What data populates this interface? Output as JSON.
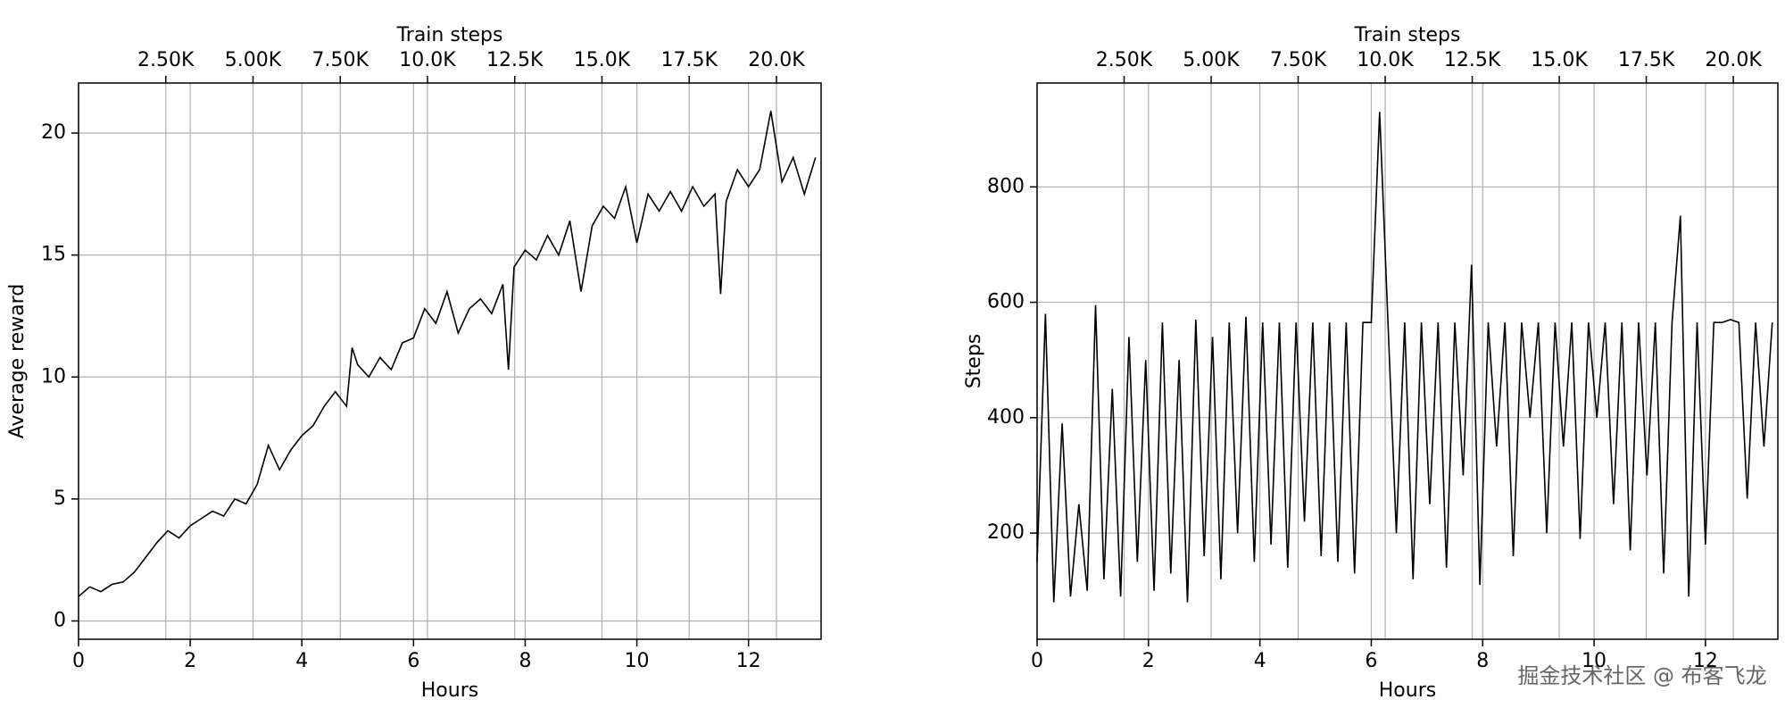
{
  "chart_data": [
    {
      "type": "line",
      "xlabel": "Hours",
      "ylabel": "Average reward",
      "x2label": "Train steps",
      "color": "#000000",
      "grid": true,
      "xlim": [
        0,
        13.3
      ],
      "xticks": [
        0,
        2,
        4,
        6,
        8,
        10,
        12
      ],
      "x2lim": [
        0,
        21280
      ],
      "x2ticks": [
        {
          "value": 2500,
          "label": "2.50K"
        },
        {
          "value": 5000,
          "label": "5.00K"
        },
        {
          "value": 7500,
          "label": "7.50K"
        },
        {
          "value": 10000,
          "label": "10.0K"
        },
        {
          "value": 12500,
          "label": "12.5K"
        },
        {
          "value": 15000,
          "label": "15.0K"
        },
        {
          "value": 17500,
          "label": "17.5K"
        },
        {
          "value": 20000,
          "label": "20.0K"
        }
      ],
      "ylim": [
        -0.75,
        22.05
      ],
      "yticks": [
        0,
        5,
        10,
        15,
        20
      ],
      "x": [
        0,
        0.2,
        0.4,
        0.6,
        0.8,
        1.0,
        1.2,
        1.4,
        1.6,
        1.8,
        2.0,
        2.2,
        2.4,
        2.6,
        2.8,
        3.0,
        3.2,
        3.4,
        3.6,
        3.8,
        4.0,
        4.2,
        4.4,
        4.6,
        4.8,
        4.9,
        5.0,
        5.2,
        5.4,
        5.6,
        5.8,
        6.0,
        6.2,
        6.4,
        6.6,
        6.8,
        7.0,
        7.2,
        7.4,
        7.6,
        7.7,
        7.8,
        8.0,
        8.2,
        8.4,
        8.6,
        8.8,
        9.0,
        9.2,
        9.4,
        9.6,
        9.8,
        10.0,
        10.2,
        10.4,
        10.6,
        10.8,
        11.0,
        11.2,
        11.4,
        11.5,
        11.6,
        11.8,
        12.0,
        12.2,
        12.4,
        12.6,
        12.8,
        13.0,
        13.2
      ],
      "values": [
        1.0,
        1.4,
        1.2,
        1.5,
        1.6,
        2.0,
        2.6,
        3.2,
        3.7,
        3.4,
        3.9,
        4.2,
        4.5,
        4.3,
        5.0,
        4.8,
        5.6,
        7.2,
        6.2,
        7.0,
        7.6,
        8.0,
        8.8,
        9.4,
        8.8,
        11.2,
        10.5,
        10.0,
        10.8,
        10.3,
        11.4,
        11.6,
        12.8,
        12.2,
        13.5,
        11.8,
        12.8,
        13.2,
        12.6,
        13.8,
        10.3,
        14.5,
        15.2,
        14.8,
        15.8,
        15.0,
        16.4,
        13.5,
        16.2,
        17.0,
        16.5,
        17.8,
        15.5,
        17.5,
        16.8,
        17.6,
        16.8,
        17.8,
        17.0,
        17.5,
        13.4,
        17.2,
        18.5,
        17.8,
        18.5,
        20.9,
        18.0,
        19.0,
        17.5,
        19.0
      ]
    },
    {
      "type": "line",
      "xlabel": "Hours",
      "ylabel": "Steps",
      "x2label": "Train steps",
      "color": "#000000",
      "grid": true,
      "xlim": [
        0,
        13.3
      ],
      "xticks": [
        0,
        2,
        4,
        6,
        8,
        10,
        12
      ],
      "x2lim": [
        0,
        21280
      ],
      "x2ticks": [
        {
          "value": 2500,
          "label": "2.50K"
        },
        {
          "value": 5000,
          "label": "5.00K"
        },
        {
          "value": 7500,
          "label": "7.50K"
        },
        {
          "value": 10000,
          "label": "10.0K"
        },
        {
          "value": 12500,
          "label": "12.5K"
        },
        {
          "value": 15000,
          "label": "15.0K"
        },
        {
          "value": 17500,
          "label": "17.5K"
        },
        {
          "value": 20000,
          "label": "20.0K"
        }
      ],
      "ylim": [
        16,
        980
      ],
      "yticks": [
        200,
        400,
        600,
        800
      ],
      "x": [
        0,
        0.15,
        0.3,
        0.45,
        0.6,
        0.75,
        0.9,
        1.05,
        1.2,
        1.35,
        1.5,
        1.65,
        1.8,
        1.95,
        2.1,
        2.25,
        2.4,
        2.55,
        2.7,
        2.85,
        3.0,
        3.15,
        3.3,
        3.45,
        3.6,
        3.75,
        3.9,
        4.05,
        4.2,
        4.35,
        4.5,
        4.65,
        4.8,
        4.95,
        5.1,
        5.25,
        5.4,
        5.55,
        5.7,
        5.85,
        6.0,
        6.15,
        6.3,
        6.45,
        6.6,
        6.75,
        6.9,
        7.05,
        7.2,
        7.35,
        7.5,
        7.65,
        7.8,
        7.95,
        8.1,
        8.25,
        8.4,
        8.55,
        8.7,
        8.85,
        9.0,
        9.15,
        9.3,
        9.45,
        9.6,
        9.75,
        9.9,
        10.05,
        10.2,
        10.35,
        10.5,
        10.65,
        10.8,
        10.95,
        11.1,
        11.25,
        11.4,
        11.55,
        11.7,
        11.85,
        12.0,
        12.15,
        12.3,
        12.45,
        12.6,
        12.75,
        12.9,
        13.05,
        13.2
      ],
      "values": [
        150,
        580,
        80,
        390,
        90,
        250,
        100,
        595,
        120,
        450,
        90,
        540,
        150,
        500,
        100,
        565,
        130,
        500,
        80,
        570,
        160,
        540,
        120,
        565,
        200,
        575,
        150,
        565,
        180,
        565,
        140,
        565,
        220,
        565,
        160,
        565,
        150,
        565,
        130,
        565,
        565,
        930,
        565,
        200,
        565,
        120,
        565,
        250,
        565,
        140,
        565,
        300,
        665,
        110,
        565,
        350,
        565,
        160,
        565,
        400,
        565,
        200,
        565,
        350,
        565,
        190,
        565,
        400,
        565,
        250,
        565,
        170,
        565,
        300,
        565,
        130,
        565,
        750,
        90,
        565,
        180,
        565,
        565,
        570,
        565,
        260,
        565,
        350,
        565
      ]
    }
  ],
  "watermark": "掘金技术社区 @ 布客飞龙"
}
